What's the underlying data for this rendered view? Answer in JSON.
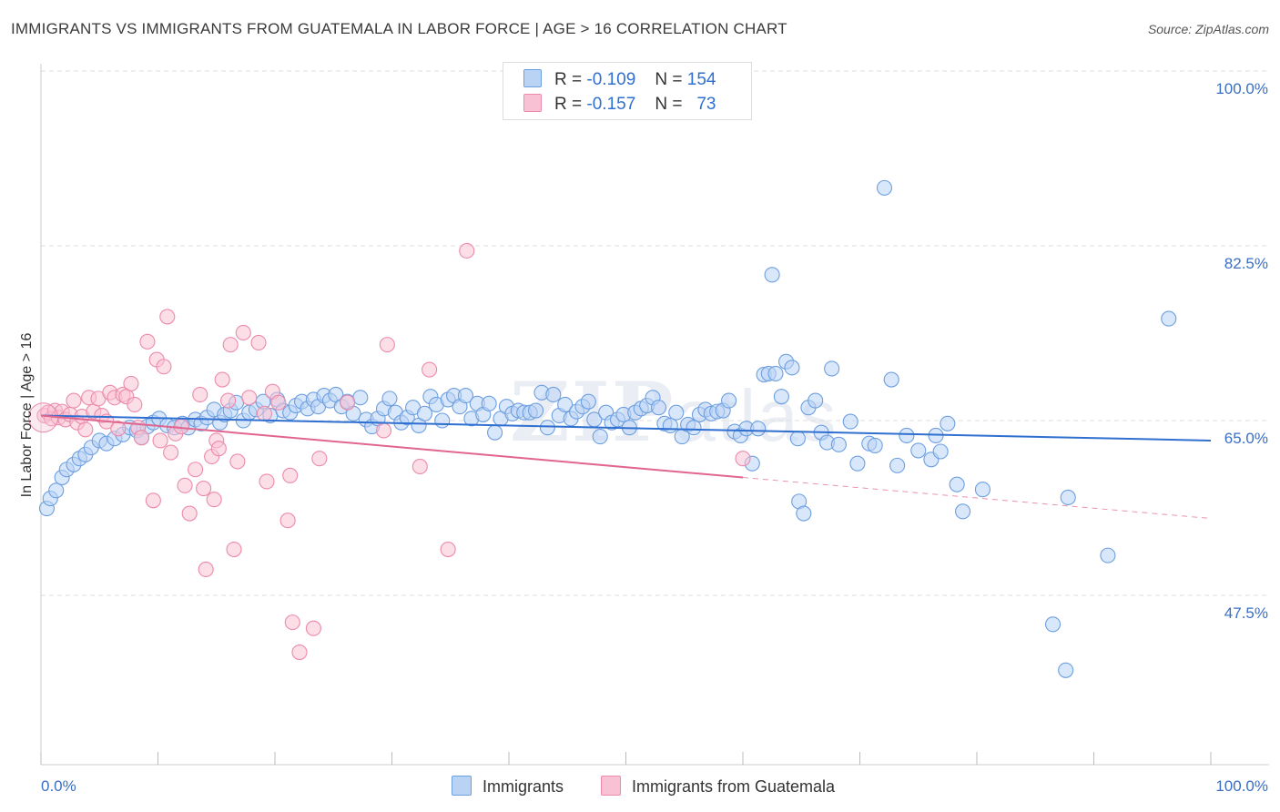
{
  "title": "IMMIGRANTS VS IMMIGRANTS FROM GUATEMALA IN LABOR FORCE | AGE > 16 CORRELATION CHART",
  "source": "Source: ZipAtlas.com",
  "watermark": {
    "zip": "ZIP",
    "atlas": "atlas"
  },
  "legend": {
    "r_label": "R =",
    "n_label": "N =",
    "rows": [
      {
        "r": "-0.109",
        "n": "154"
      },
      {
        "r": "-0.157",
        "n": "73"
      }
    ]
  },
  "colors": {
    "blue_fill": "#b9d3f5",
    "blue_stroke": "#6d9fe0",
    "blue_line": "#2f6fd0",
    "pink_fill": "#f9c2d4",
    "pink_stroke": "#ec8aab",
    "pink_line": "#e0668f",
    "grid": "#dddddd",
    "tick_label": "#3a6fc4"
  },
  "chart_data": {
    "type": "scatter",
    "title": "IMMIGRANTS VS IMMIGRANTS FROM GUATEMALA IN LABOR FORCE | AGE > 16 CORRELATION CHART",
    "xlabel": "",
    "ylabel": "In Labor Force | Age > 16",
    "xlim": [
      0,
      100
    ],
    "ylim": [
      33.5,
      102
    ],
    "x_tick_labels": [
      "0.0%",
      "100.0%"
    ],
    "y_ticks": [
      47.5,
      65.0,
      82.5,
      100.0
    ],
    "y_tick_labels": [
      "47.5%",
      "65.0%",
      "82.5%",
      "100.0%"
    ],
    "grid": true,
    "legend_position": "top-center",
    "series": [
      {
        "name": "Immigrants",
        "r": -0.109,
        "n": 154,
        "trend": {
          "x": [
            0,
            100
          ],
          "y": [
            65.5,
            63.0
          ]
        },
        "points": [
          [
            0.5,
            56.2
          ],
          [
            0.8,
            57.2
          ],
          [
            1.3,
            58.0
          ],
          [
            1.8,
            59.3
          ],
          [
            2.2,
            60.1
          ],
          [
            2.8,
            60.6
          ],
          [
            3.3,
            61.2
          ],
          [
            3.8,
            61.6
          ],
          [
            4.3,
            62.3
          ],
          [
            5.0,
            63.0
          ],
          [
            5.6,
            62.7
          ],
          [
            6.3,
            63.2
          ],
          [
            7.0,
            63.6
          ],
          [
            7.6,
            64.3
          ],
          [
            8.2,
            64.0
          ],
          [
            8.6,
            63.3
          ],
          [
            9.1,
            64.4
          ],
          [
            9.6,
            64.8
          ],
          [
            10.1,
            65.2
          ],
          [
            10.8,
            64.5
          ],
          [
            11.4,
            64.3
          ],
          [
            12.1,
            64.7
          ],
          [
            12.6,
            64.3
          ],
          [
            13.2,
            65.1
          ],
          [
            13.7,
            64.7
          ],
          [
            14.2,
            65.3
          ],
          [
            14.8,
            66.1
          ],
          [
            15.3,
            64.8
          ],
          [
            15.7,
            65.6
          ],
          [
            16.2,
            66.0
          ],
          [
            16.7,
            66.8
          ],
          [
            17.3,
            65.0
          ],
          [
            17.8,
            65.8
          ],
          [
            18.4,
            66.1
          ],
          [
            19.0,
            66.9
          ],
          [
            19.6,
            65.5
          ],
          [
            20.2,
            67.1
          ],
          [
            20.7,
            66.0
          ],
          [
            21.3,
            65.8
          ],
          [
            21.8,
            66.5
          ],
          [
            22.3,
            66.9
          ],
          [
            22.8,
            66.2
          ],
          [
            23.3,
            67.1
          ],
          [
            23.7,
            66.4
          ],
          [
            24.2,
            67.5
          ],
          [
            24.7,
            67.0
          ],
          [
            25.2,
            67.6
          ],
          [
            25.7,
            66.4
          ],
          [
            26.2,
            66.9
          ],
          [
            26.7,
            65.7
          ],
          [
            27.3,
            67.3
          ],
          [
            27.8,
            65.1
          ],
          [
            28.3,
            64.4
          ],
          [
            28.8,
            65.2
          ],
          [
            29.3,
            66.2
          ],
          [
            29.8,
            67.2
          ],
          [
            30.3,
            65.8
          ],
          [
            30.8,
            64.8
          ],
          [
            31.3,
            65.3
          ],
          [
            31.8,
            66.3
          ],
          [
            32.3,
            64.5
          ],
          [
            32.8,
            65.7
          ],
          [
            33.3,
            67.4
          ],
          [
            33.8,
            66.6
          ],
          [
            34.3,
            65.0
          ],
          [
            34.8,
            67.1
          ],
          [
            35.3,
            67.5
          ],
          [
            35.8,
            66.4
          ],
          [
            36.3,
            67.5
          ],
          [
            36.8,
            65.2
          ],
          [
            37.3,
            66.7
          ],
          [
            37.8,
            65.6
          ],
          [
            38.3,
            66.7
          ],
          [
            38.8,
            63.8
          ],
          [
            39.3,
            65.2
          ],
          [
            39.8,
            66.4
          ],
          [
            40.3,
            65.7
          ],
          [
            40.8,
            66.0
          ],
          [
            41.3,
            65.8
          ],
          [
            41.8,
            65.8
          ],
          [
            42.3,
            66.0
          ],
          [
            42.8,
            67.8
          ],
          [
            43.3,
            64.3
          ],
          [
            43.8,
            67.6
          ],
          [
            44.3,
            65.5
          ],
          [
            44.8,
            66.6
          ],
          [
            45.3,
            65.2
          ],
          [
            45.8,
            65.9
          ],
          [
            46.3,
            66.4
          ],
          [
            46.8,
            66.9
          ],
          [
            47.3,
            65.1
          ],
          [
            47.8,
            63.4
          ],
          [
            48.3,
            65.8
          ],
          [
            48.8,
            64.8
          ],
          [
            49.3,
            65.1
          ],
          [
            49.8,
            65.6
          ],
          [
            50.3,
            64.3
          ],
          [
            50.8,
            65.8
          ],
          [
            51.3,
            66.2
          ],
          [
            51.8,
            66.5
          ],
          [
            52.3,
            67.3
          ],
          [
            52.8,
            66.3
          ],
          [
            53.3,
            64.7
          ],
          [
            53.8,
            64.5
          ],
          [
            54.3,
            65.8
          ],
          [
            54.8,
            63.4
          ],
          [
            55.3,
            64.6
          ],
          [
            55.8,
            64.3
          ],
          [
            56.3,
            65.6
          ],
          [
            56.8,
            66.1
          ],
          [
            57.3,
            65.7
          ],
          [
            57.8,
            65.9
          ],
          [
            58.3,
            66.0
          ],
          [
            58.8,
            67.0
          ],
          [
            59.3,
            63.9
          ],
          [
            59.8,
            63.5
          ],
          [
            60.3,
            64.2
          ],
          [
            60.8,
            60.7
          ],
          [
            61.3,
            64.2
          ],
          [
            61.8,
            69.6
          ],
          [
            62.2,
            69.7
          ],
          [
            62.5,
            79.6
          ],
          [
            62.8,
            69.7
          ],
          [
            63.3,
            67.4
          ],
          [
            63.7,
            70.9
          ],
          [
            64.2,
            70.3
          ],
          [
            64.7,
            63.2
          ],
          [
            64.8,
            56.9
          ],
          [
            65.2,
            55.7
          ],
          [
            65.6,
            66.3
          ],
          [
            66.2,
            67.0
          ],
          [
            66.7,
            63.8
          ],
          [
            67.2,
            62.8
          ],
          [
            67.6,
            70.2
          ],
          [
            68.2,
            62.6
          ],
          [
            69.2,
            64.9
          ],
          [
            69.8,
            60.7
          ],
          [
            70.8,
            62.7
          ],
          [
            71.3,
            62.5
          ],
          [
            72.1,
            88.3
          ],
          [
            72.7,
            69.1
          ],
          [
            73.2,
            60.5
          ],
          [
            74.0,
            63.5
          ],
          [
            75.0,
            62.0
          ],
          [
            76.1,
            61.1
          ],
          [
            76.5,
            63.5
          ],
          [
            76.9,
            61.9
          ],
          [
            77.5,
            64.7
          ],
          [
            78.3,
            58.6
          ],
          [
            78.8,
            55.9
          ],
          [
            80.5,
            58.1
          ],
          [
            86.5,
            44.6
          ],
          [
            87.6,
            40.0
          ],
          [
            87.8,
            57.3
          ],
          [
            91.2,
            51.5
          ],
          [
            96.4,
            75.2
          ]
        ]
      },
      {
        "name": "Immigrants from Guatemala",
        "r": -0.157,
        "n": 73,
        "trend": {
          "x": [
            0,
            60
          ],
          "y": [
            65.5,
            59.3
          ],
          "dashed_to": {
            "x": 100,
            "y": 55.2
          }
        },
        "points": [
          [
            0.3,
            65.5
          ],
          [
            0.6,
            65.8
          ],
          [
            0.9,
            65.2
          ],
          [
            1.2,
            66.0
          ],
          [
            1.5,
            65.3
          ],
          [
            1.8,
            65.9
          ],
          [
            2.1,
            65.1
          ],
          [
            2.5,
            65.6
          ],
          [
            2.8,
            67.0
          ],
          [
            3.1,
            64.8
          ],
          [
            3.5,
            65.4
          ],
          [
            3.8,
            64.1
          ],
          [
            4.1,
            67.3
          ],
          [
            4.5,
            65.9
          ],
          [
            4.9,
            67.2
          ],
          [
            5.2,
            65.5
          ],
          [
            5.6,
            64.9
          ],
          [
            5.9,
            67.8
          ],
          [
            6.3,
            67.3
          ],
          [
            6.6,
            64.2
          ],
          [
            7.0,
            67.6
          ],
          [
            7.3,
            67.4
          ],
          [
            7.7,
            68.7
          ],
          [
            8.0,
            66.6
          ],
          [
            8.3,
            64.3
          ],
          [
            8.6,
            63.3
          ],
          [
            9.1,
            72.9
          ],
          [
            9.6,
            57.0
          ],
          [
            9.9,
            71.1
          ],
          [
            10.2,
            63.0
          ],
          [
            10.5,
            70.4
          ],
          [
            10.8,
            75.4
          ],
          [
            11.1,
            61.8
          ],
          [
            11.5,
            63.7
          ],
          [
            12.0,
            64.4
          ],
          [
            12.3,
            58.5
          ],
          [
            12.7,
            55.7
          ],
          [
            13.2,
            60.1
          ],
          [
            13.6,
            67.6
          ],
          [
            13.9,
            58.2
          ],
          [
            14.1,
            50.1
          ],
          [
            14.6,
            61.4
          ],
          [
            14.8,
            57.1
          ],
          [
            15.0,
            63.0
          ],
          [
            15.2,
            62.2
          ],
          [
            15.5,
            69.1
          ],
          [
            16.0,
            67.0
          ],
          [
            16.2,
            72.6
          ],
          [
            16.5,
            52.1
          ],
          [
            16.8,
            60.9
          ],
          [
            17.3,
            73.8
          ],
          [
            17.8,
            67.3
          ],
          [
            18.6,
            72.8
          ],
          [
            19.1,
            65.7
          ],
          [
            19.3,
            58.9
          ],
          [
            19.8,
            67.9
          ],
          [
            20.3,
            66.8
          ],
          [
            21.1,
            55.0
          ],
          [
            21.3,
            59.5
          ],
          [
            21.5,
            44.8
          ],
          [
            22.1,
            41.8
          ],
          [
            23.3,
            44.2
          ],
          [
            23.8,
            61.2
          ],
          [
            26.2,
            66.8
          ],
          [
            29.3,
            64.0
          ],
          [
            29.6,
            72.6
          ],
          [
            32.4,
            60.4
          ],
          [
            33.2,
            70.1
          ],
          [
            34.8,
            52.1
          ],
          [
            36.4,
            82.0
          ],
          [
            60.0,
            61.2
          ]
        ]
      }
    ]
  },
  "axis": {
    "y_title": "In Labor Force | Age > 16",
    "x_min_label": "0.0%",
    "x_max_label": "100.0%"
  }
}
